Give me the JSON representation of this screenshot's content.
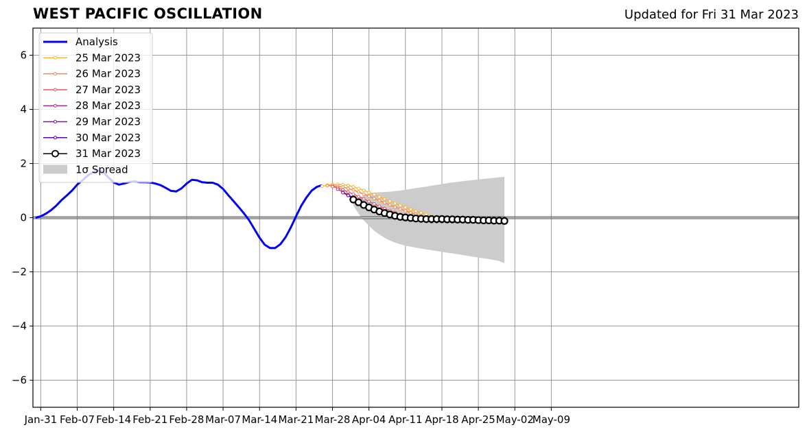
{
  "header": {
    "title": "WEST PACIFIC OSCILLATION",
    "updated": "Updated for Fri 31 Mar 2023"
  },
  "chart_data": {
    "type": "line",
    "title": "WEST PACIFIC OSCILLATION",
    "xlabel": "",
    "ylabel": "",
    "x_unit": "days",
    "xlim": [
      -1.5,
      145.5
    ],
    "ylim": [
      -7,
      7
    ],
    "grid": true,
    "legend_position": "top-left",
    "x_ticks": [
      {
        "x": 0,
        "label": "Jan-31"
      },
      {
        "x": 7,
        "label": "Feb-07"
      },
      {
        "x": 14,
        "label": "Feb-14"
      },
      {
        "x": 21,
        "label": "Feb-21"
      },
      {
        "x": 28,
        "label": "Feb-28"
      },
      {
        "x": 35,
        "label": "Mar-07"
      },
      {
        "x": 42,
        "label": "Mar-14"
      },
      {
        "x": 49,
        "label": "Mar-21"
      },
      {
        "x": 56,
        "label": "Mar-28"
      },
      {
        "x": 63,
        "label": "Apr-04"
      },
      {
        "x": 70,
        "label": "Apr-11"
      },
      {
        "x": 77,
        "label": "Apr-18"
      },
      {
        "x": 84,
        "label": "Apr-25"
      },
      {
        "x": 91,
        "label": "May-02"
      },
      {
        "x": 98,
        "label": "May-09"
      }
    ],
    "y_ticks": [
      {
        "y": 6,
        "label": "6"
      },
      {
        "y": 4,
        "label": "4"
      },
      {
        "y": 2,
        "label": "2"
      },
      {
        "y": 0,
        "label": "0"
      },
      {
        "y": -2,
        "label": "−2"
      },
      {
        "y": -4,
        "label": "−4"
      },
      {
        "y": -6,
        "label": "−6"
      }
    ],
    "analysis": {
      "name": "Analysis",
      "color": "#0000ff",
      "x": [
        -1,
        0,
        1,
        2,
        3,
        4,
        5,
        6,
        7,
        8,
        9,
        10,
        11,
        12,
        13,
        14,
        15,
        16,
        17,
        18,
        19,
        20,
        21,
        22,
        23,
        24,
        25,
        26,
        27,
        28,
        29,
        30,
        31,
        32,
        33,
        34,
        35,
        36,
        37,
        38,
        39,
        40,
        41,
        42,
        43,
        44,
        45,
        46,
        47,
        48,
        49,
        50,
        51,
        52,
        53,
        54
      ],
      "y": [
        0.0,
        0.05,
        0.15,
        0.28,
        0.45,
        0.65,
        0.82,
        1.0,
        1.22,
        1.38,
        1.55,
        1.68,
        1.75,
        1.68,
        1.48,
        1.3,
        1.22,
        1.26,
        1.32,
        1.34,
        1.31,
        1.31,
        1.3,
        1.26,
        1.2,
        1.1,
        0.99,
        0.97,
        1.08,
        1.26,
        1.4,
        1.38,
        1.31,
        1.29,
        1.29,
        1.22,
        1.06,
        0.83,
        0.61,
        0.39,
        0.16,
        -0.1,
        -0.42,
        -0.74,
        -1.0,
        -1.12,
        -1.12,
        -0.98,
        -0.72,
        -0.36,
        0.05,
        0.44,
        0.75,
        1.0,
        1.14,
        1.2
      ]
    },
    "forecasts": [
      {
        "name": "25 Mar 2023",
        "color": "#fdb42f",
        "start": 54,
        "y": [
          1.16,
          1.2,
          1.22,
          1.23,
          1.22,
          1.19,
          1.14,
          1.08,
          1.01,
          0.93,
          0.85,
          0.77,
          0.69,
          0.61,
          0.53,
          0.45,
          0.38,
          0.31,
          0.24,
          0.18,
          0.12,
          0.07,
          0.03,
          0.0,
          -0.02,
          -0.04,
          -0.05,
          -0.06,
          -0.07,
          -0.07,
          -0.08,
          -0.08,
          -0.08,
          -0.09
        ]
      },
      {
        "name": "26 Mar 2023",
        "color": "#f48849",
        "start": 55,
        "y": [
          1.18,
          1.18,
          1.16,
          1.13,
          1.08,
          1.02,
          0.95,
          0.87,
          0.79,
          0.71,
          0.63,
          0.55,
          0.47,
          0.39,
          0.32,
          0.25,
          0.18,
          0.12,
          0.07,
          0.03,
          0.0,
          -0.03,
          -0.05,
          -0.07,
          -0.08,
          -0.09,
          -0.1,
          -0.1,
          -0.1,
          -0.11,
          -0.11,
          -0.11
        ]
      },
      {
        "name": "27 Mar 2023",
        "color": "#db5c68",
        "start": 56,
        "y": [
          1.15,
          1.1,
          1.03,
          0.95,
          0.87,
          0.78,
          0.69,
          0.6,
          0.51,
          0.42,
          0.34,
          0.26,
          0.19,
          0.12,
          0.06,
          0.01,
          -0.03,
          -0.06,
          -0.09,
          -0.11,
          -0.12,
          -0.13,
          -0.14,
          -0.14,
          -0.14,
          -0.14,
          -0.14,
          -0.14,
          -0.13,
          -0.13,
          -0.13
        ]
      },
      {
        "name": "28 Mar 2023",
        "color": "#b83289",
        "start": 57,
        "y": [
          1.05,
          0.95,
          0.85,
          0.74,
          0.63,
          0.52,
          0.42,
          0.33,
          0.24,
          0.16,
          0.09,
          0.03,
          -0.02,
          -0.06,
          -0.09,
          -0.11,
          -0.13,
          -0.14,
          -0.15,
          -0.15,
          -0.15,
          -0.15,
          -0.15,
          -0.14,
          -0.14,
          -0.14,
          -0.13,
          -0.13,
          -0.13
        ]
      },
      {
        "name": "29 Mar 2023",
        "color": "#8b0aa5",
        "start": 58,
        "y": [
          0.92,
          0.82,
          0.7,
          0.58,
          0.47,
          0.37,
          0.28,
          0.2,
          0.13,
          0.07,
          0.02,
          -0.02,
          -0.05,
          -0.08,
          -0.1,
          -0.11,
          -0.12,
          -0.13,
          -0.13,
          -0.13,
          -0.13,
          -0.13,
          -0.12,
          -0.12,
          -0.12,
          -0.12,
          -0.12
        ]
      },
      {
        "name": "30 Mar 2023",
        "color": "#5c01a6",
        "start": 59,
        "y": [
          0.82,
          0.72,
          0.6,
          0.49,
          0.39,
          0.3,
          0.22,
          0.15,
          0.09,
          0.04,
          0.0,
          -0.03,
          -0.05,
          -0.07,
          -0.08,
          -0.09,
          -0.1,
          -0.1,
          -0.1,
          -0.1,
          -0.1,
          -0.1,
          -0.1,
          -0.1,
          -0.1,
          -0.1
        ]
      }
    ],
    "latest": {
      "name": "31 Mar 2023",
      "color": "#000000",
      "start": 60,
      "y": [
        0.67,
        0.57,
        0.47,
        0.38,
        0.3,
        0.23,
        0.17,
        0.12,
        0.07,
        0.03,
        0.01,
        -0.01,
        -0.03,
        -0.04,
        -0.05,
        -0.05,
        -0.05,
        -0.05,
        -0.06,
        -0.06,
        -0.07,
        -0.07,
        -0.08,
        -0.08,
        -0.09,
        -0.1,
        -0.1,
        -0.11,
        -0.11,
        -0.12
      ]
    },
    "spread": {
      "name": "1σ Spread",
      "color": "#cccccc",
      "start": 60,
      "upper": [
        0.55,
        0.72,
        0.83,
        0.9,
        0.93,
        0.94,
        0.95,
        0.96,
        0.98,
        1.0,
        1.03,
        1.06,
        1.09,
        1.12,
        1.15,
        1.18,
        1.21,
        1.24,
        1.27,
        1.3,
        1.32,
        1.35,
        1.37,
        1.39,
        1.41,
        1.43,
        1.45,
        1.47,
        1.49,
        1.51
      ],
      "lower": [
        0.45,
        0.15,
        -0.1,
        -0.3,
        -0.48,
        -0.62,
        -0.74,
        -0.84,
        -0.92,
        -0.98,
        -1.03,
        -1.07,
        -1.11,
        -1.14,
        -1.17,
        -1.2,
        -1.23,
        -1.26,
        -1.29,
        -1.32,
        -1.35,
        -1.38,
        -1.41,
        -1.44,
        -1.47,
        -1.5,
        -1.53,
        -1.56,
        -1.6,
        -1.68
      ]
    }
  }
}
